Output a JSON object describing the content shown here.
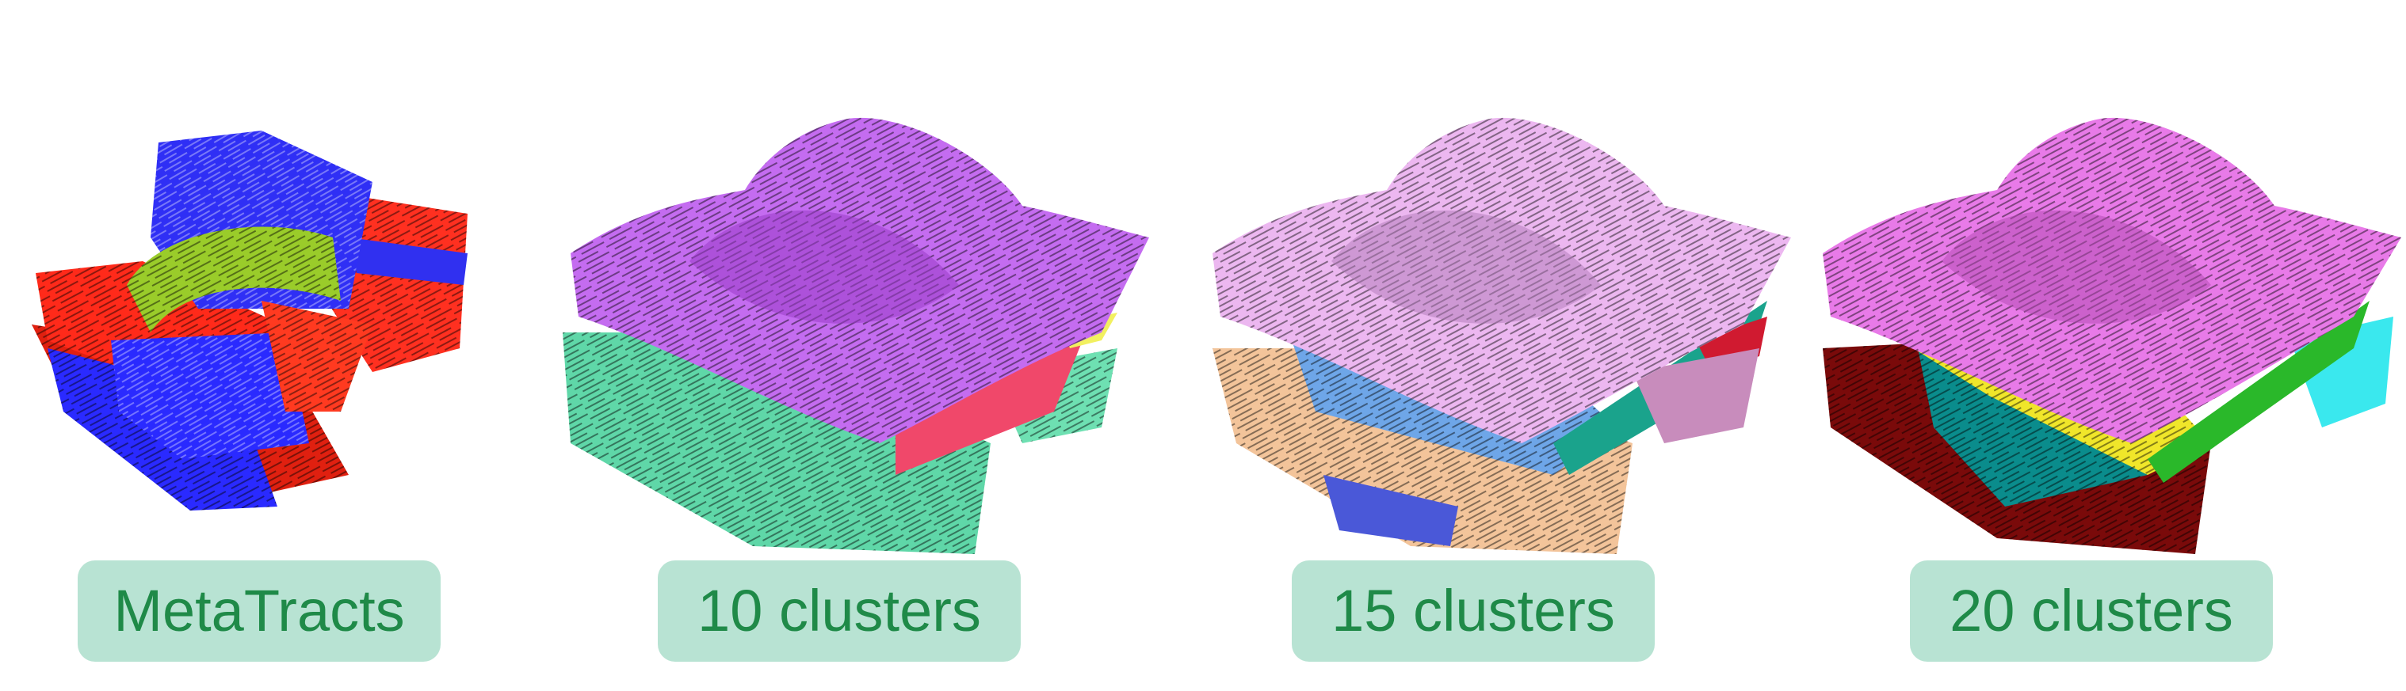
{
  "panels": [
    {
      "name": "metatracts",
      "label": "MetaTracts",
      "colors": {
        "main": "#ff2a1a",
        "accent": "#2a2aff",
        "band": "#9acc2a"
      }
    },
    {
      "name": "clusters-10",
      "label": "10 clusters",
      "colors": {
        "top": "#c46cf0",
        "bottom": "#5fd7a8",
        "edge": "#f0486a",
        "yellow": "#f2f060"
      }
    },
    {
      "name": "clusters-15",
      "label": "15 clusters",
      "colors": {
        "top": "#ecb7f0",
        "mid": "#6ea6e8",
        "bottom": "#f3c49a",
        "teal": "#1aa38c",
        "red": "#d01a30",
        "blue": "#4a58d8"
      }
    },
    {
      "name": "clusters-20",
      "label": "20 clusters",
      "colors": {
        "top": "#e87ae8",
        "yellow": "#f0e62a",
        "teal": "#0a8c8c",
        "darkred": "#7a0a0a",
        "green": "#2ab82a",
        "cyan": "#3ae8ee"
      }
    }
  ]
}
